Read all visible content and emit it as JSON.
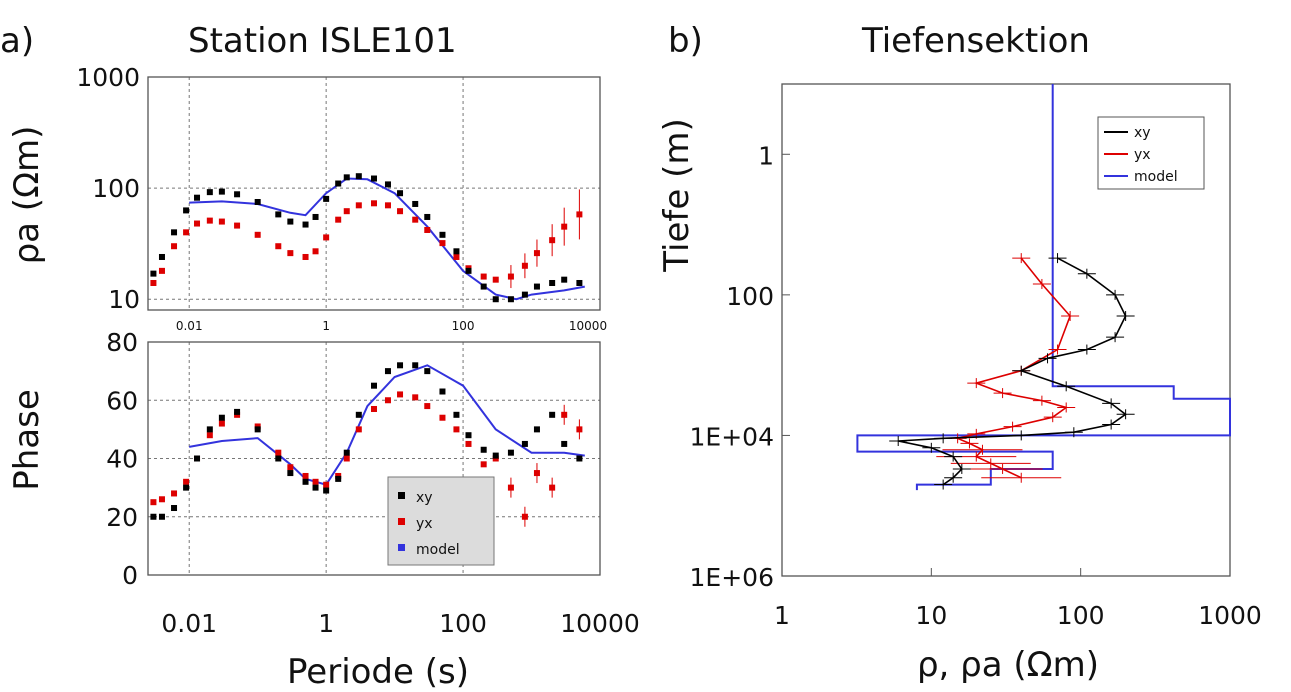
{
  "panel_a": {
    "label": "a)",
    "title": "Station ISLE101"
  },
  "panel_b": {
    "label": "b)",
    "title": "Tiefensektion"
  },
  "chart_data": [
    {
      "type": "scatter",
      "panel": "a-top",
      "ylabel": "ρa (Ωm)",
      "x_scale": "log",
      "y_scale": "log",
      "xlim": [
        0.0025,
        10000
      ],
      "ylim": [
        8,
        1000
      ],
      "x_ticks": [
        "0.01",
        "1",
        "100",
        "10000"
      ],
      "y_ticks": [
        "10",
        "100",
        "1000"
      ],
      "grid": true,
      "series": [
        {
          "name": "xy",
          "color": "#000000",
          "x": [
            0.003,
            0.004,
            0.006,
            0.009,
            0.013,
            0.02,
            0.03,
            0.05,
            0.1,
            0.2,
            0.3,
            0.5,
            0.7,
            1,
            1.5,
            2,
            3,
            5,
            8,
            12,
            20,
            30,
            50,
            80,
            120,
            200,
            300,
            500,
            800,
            1200,
            2000,
            3000,
            5000
          ],
          "y": [
            17,
            24,
            40,
            63,
            82,
            92,
            93,
            88,
            75,
            58,
            50,
            47,
            55,
            80,
            110,
            125,
            128,
            122,
            108,
            90,
            72,
            55,
            38,
            27,
            18,
            13,
            10,
            10,
            11,
            13,
            14,
            15,
            14
          ]
        },
        {
          "name": "yx",
          "color": "#dd0000",
          "x": [
            0.003,
            0.004,
            0.006,
            0.009,
            0.013,
            0.02,
            0.03,
            0.05,
            0.1,
            0.2,
            0.3,
            0.5,
            0.7,
            1,
            1.5,
            2,
            3,
            5,
            8,
            12,
            20,
            30,
            50,
            80,
            120,
            200,
            300,
            500,
            800,
            1200,
            2000,
            3000,
            5000
          ],
          "y": [
            14,
            18,
            30,
            40,
            48,
            51,
            50,
            46,
            38,
            30,
            26,
            24,
            27,
            36,
            52,
            62,
            70,
            73,
            70,
            62,
            52,
            42,
            32,
            24,
            19,
            16,
            15,
            16,
            20,
            26,
            34,
            45,
            58
          ]
        },
        {
          "name": "model",
          "color": "#3333dd",
          "x": [
            0.01,
            0.03,
            0.1,
            0.3,
            0.5,
            1,
            2,
            4,
            10,
            30,
            100,
            300,
            600,
            1000,
            3000,
            6000
          ],
          "y": [
            74,
            76,
            72,
            60,
            57,
            90,
            122,
            120,
            90,
            45,
            18,
            11,
            10,
            11,
            12,
            13
          ]
        }
      ]
    },
    {
      "type": "scatter",
      "panel": "a-bottom",
      "xlabel": "Periode (s)",
      "ylabel": "Phase",
      "x_scale": "log",
      "xlim": [
        0.0025,
        10000
      ],
      "ylim": [
        0,
        80
      ],
      "x_ticks": [
        "0.01",
        "1",
        "100",
        "10000"
      ],
      "y_ticks": [
        "0",
        "20",
        "40",
        "60",
        "80"
      ],
      "grid": true,
      "legend": "bottom-center",
      "series": [
        {
          "name": "xy",
          "color": "#000000",
          "x": [
            0.003,
            0.004,
            0.006,
            0.009,
            0.013,
            0.02,
            0.03,
            0.05,
            0.1,
            0.2,
            0.3,
            0.5,
            0.7,
            1,
            1.5,
            2,
            3,
            5,
            8,
            12,
            20,
            30,
            50,
            80,
            120,
            200,
            300,
            500,
            800,
            1200,
            2000,
            3000,
            5000
          ],
          "y": [
            20,
            20,
            23,
            30,
            40,
            50,
            54,
            56,
            50,
            40,
            35,
            32,
            30,
            29,
            33,
            42,
            55,
            65,
            70,
            72,
            72,
            70,
            63,
            55,
            48,
            43,
            41,
            42,
            45,
            50,
            55,
            45,
            40
          ]
        },
        {
          "name": "yx",
          "color": "#dd0000",
          "x": [
            0.003,
            0.004,
            0.006,
            0.009,
            0.013,
            0.02,
            0.03,
            0.05,
            0.1,
            0.2,
            0.3,
            0.5,
            0.7,
            1,
            1.5,
            2,
            3,
            5,
            8,
            12,
            20,
            30,
            50,
            80,
            120,
            200,
            300,
            500,
            800,
            1200,
            2000,
            3000,
            5000
          ],
          "y": [
            25,
            26,
            28,
            32,
            40,
            48,
            52,
            55,
            51,
            42,
            37,
            34,
            32,
            31,
            34,
            40,
            50,
            57,
            60,
            62,
            61,
            58,
            54,
            50,
            45,
            38,
            40,
            30,
            20,
            35,
            30,
            55,
            50
          ]
        },
        {
          "name": "model",
          "color": "#3333dd",
          "x": [
            0.01,
            0.03,
            0.1,
            0.3,
            0.5,
            1,
            2,
            4,
            10,
            30,
            100,
            300,
            1000,
            3000,
            6000
          ],
          "y": [
            44,
            46,
            47,
            38,
            33,
            31,
            42,
            58,
            68,
            72,
            65,
            50,
            42,
            42,
            41
          ]
        }
      ]
    },
    {
      "type": "line",
      "panel": "b",
      "xlabel": "ρ, ρa (Ωm)",
      "ylabel": "Tiefe (m)",
      "x_scale": "log",
      "y_scale": "log",
      "xlim": [
        1,
        1000
      ],
      "ylim": [
        1000000.0,
        0.1
      ],
      "x_ticks": [
        "1",
        "10",
        "100",
        "1000"
      ],
      "y_ticks": [
        "1",
        "100",
        "1E+04",
        "1E+06"
      ],
      "legend": "top-right",
      "series": [
        {
          "name": "xy",
          "color": "#000000",
          "x": [
            70,
            110,
            170,
            200,
            170,
            110,
            60,
            40,
            80,
            160,
            200,
            160,
            90,
            40,
            12,
            6,
            10,
            14,
            16,
            14,
            12
          ],
          "y": [
            30,
            50,
            100,
            200,
            400,
            600,
            800,
            1200,
            2000,
            3500,
            5000,
            7000,
            9000,
            10000,
            11000,
            12000,
            15000,
            20000,
            30000,
            40000,
            50000
          ]
        },
        {
          "name": "yx",
          "color": "#dd0000",
          "x": [
            40,
            55,
            85,
            70,
            40,
            20,
            30,
            55,
            80,
            65,
            35,
            20,
            15,
            18,
            22,
            20,
            25,
            30,
            40
          ],
          "y": [
            30,
            70,
            200,
            600,
            1200,
            1800,
            2500,
            3200,
            4000,
            5500,
            7500,
            9500,
            11000,
            13000,
            16000,
            20000,
            25000,
            30000,
            40000
          ]
        },
        {
          "name": "model",
          "color": "#3333dd",
          "steps": [
            [
              65,
              0.1
            ],
            [
              65,
              2000
            ],
            [
              420,
              2000
            ],
            [
              420,
              3000
            ],
            [
              1000,
              3000
            ],
            [
              1000,
              10000
            ],
            [
              3.2,
              10000
            ],
            [
              3.2,
              17000
            ],
            [
              65,
              17000
            ],
            [
              65,
              30000
            ],
            [
              25,
              30000
            ],
            [
              25,
              50000
            ],
            [
              8,
              50000
            ],
            [
              8,
              60000
            ]
          ]
        }
      ]
    }
  ]
}
